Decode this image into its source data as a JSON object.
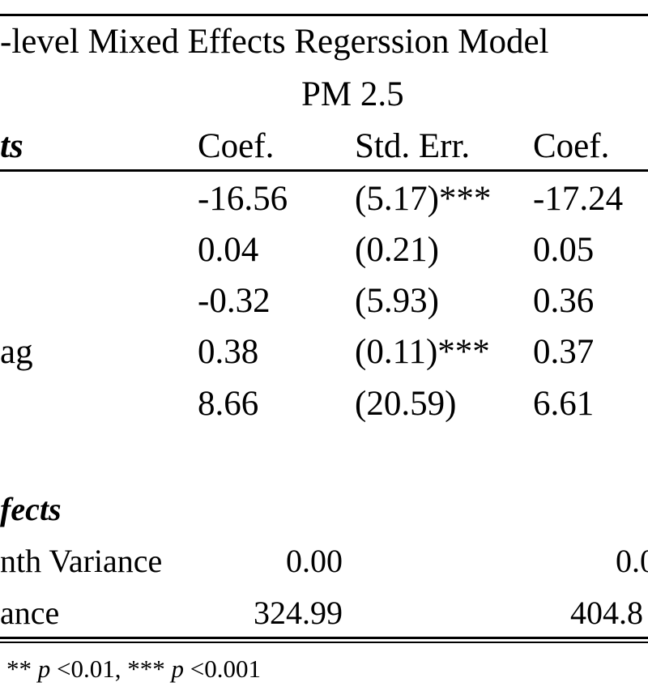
{
  "table": {
    "title": "-level Mixed Effects Regerssion Model",
    "subtitle": "PM 2.5",
    "header": {
      "section": "ts",
      "col1": "Coef.",
      "col2": "Std. Err.",
      "col3": "Coef."
    },
    "fixed_rows": [
      {
        "label": "",
        "coef": "-16.56",
        "se": "(5.17)***",
        "coef2": "-17.24"
      },
      {
        "label": "",
        "coef": "0.04",
        "se": "(0.21)",
        "coef2": "0.05"
      },
      {
        "label": "",
        "coef": "-0.32",
        "se": "(5.93)",
        "coef2": "0.36"
      },
      {
        "label": "ag",
        "coef": "0.38",
        "se": "(0.11)***",
        "coef2": "0.37"
      },
      {
        "label": "",
        "coef": "8.66",
        "se": "(20.59)",
        "coef2": "6.61"
      }
    ],
    "random_section": "fects",
    "random_rows": [
      {
        "label": "nth Variance",
        "value": "0.00",
        "value2": "0.0"
      },
      {
        "label": "ance",
        "value": "324.99",
        "value2": "404.8"
      }
    ],
    "footnote": {
      "stars2": "** ",
      "p1": "p",
      "thr1": " <0.01, *** ",
      "p2": "p",
      "thr2": " <0.001"
    }
  }
}
